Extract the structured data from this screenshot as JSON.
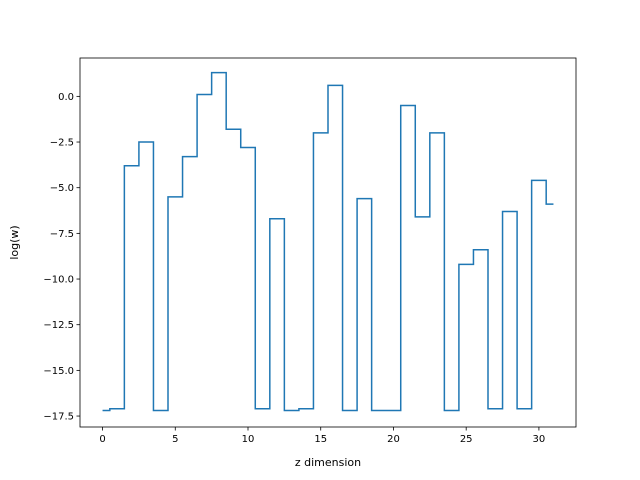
{
  "chart_data": {
    "type": "line",
    "drawstyle": "steps-mid",
    "xlabel": "z dimension",
    "ylabel": "log(w)",
    "xlim": [
      -1.55,
      32.55
    ],
    "ylim": [
      -18.1,
      2.1
    ],
    "xticks": [
      0,
      5,
      10,
      15,
      20,
      25,
      30
    ],
    "yticks": [
      0.0,
      -2.5,
      -5.0,
      -7.5,
      -10.0,
      -12.5,
      -15.0,
      -17.5
    ],
    "ytick_labels": [
      "0.0",
      "−2.5",
      "−5.0",
      "−7.5",
      "−10.0",
      "−12.5",
      "−15.0",
      "−17.5"
    ],
    "grid": false,
    "color": "#1f77b4",
    "series": [
      {
        "x": [
          0,
          1,
          2,
          3,
          4,
          5,
          6,
          7,
          8,
          9,
          10,
          11,
          12,
          13,
          14,
          15,
          16,
          17,
          18,
          19,
          20,
          21,
          22,
          23,
          24,
          25,
          26,
          27,
          28,
          29,
          30,
          31
        ],
        "values": [
          -17.2,
          -17.1,
          -3.8,
          -2.5,
          -17.2,
          -5.5,
          -3.3,
          0.1,
          1.3,
          -1.8,
          -2.8,
          -17.1,
          -6.7,
          -17.2,
          -17.1,
          -2.0,
          0.6,
          -17.2,
          -5.6,
          -17.2,
          -17.2,
          -0.5,
          -6.6,
          -2.0,
          -17.2,
          -9.2,
          -8.4,
          -17.1,
          -6.3,
          -17.1,
          -4.6,
          -5.9
        ]
      }
    ]
  }
}
